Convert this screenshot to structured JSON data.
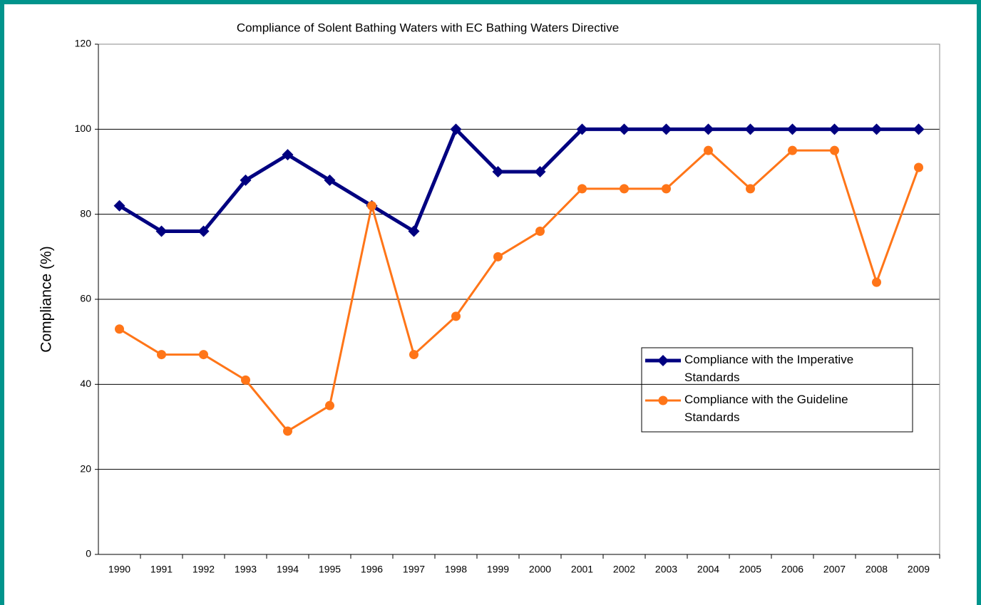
{
  "chart_data": {
    "type": "line",
    "title": "Compliance of Solent Bathing Waters with EC Bathing Waters Directive",
    "y_label": "Compliance (%)",
    "categories": [
      "1990",
      "1991",
      "1992",
      "1993",
      "1994",
      "1995",
      "1996",
      "1997",
      "1998",
      "1999",
      "2000",
      "2001",
      "2002",
      "2003",
      "2004",
      "2005",
      "2006",
      "2007",
      "2008",
      "2009"
    ],
    "series": [
      {
        "name": "Compliance with the Imperative Standards",
        "color": "#000080",
        "marker": "diamond",
        "width": 5,
        "values": [
          82,
          76,
          76,
          88,
          94,
          88,
          82,
          76,
          100,
          90,
          90,
          100,
          100,
          100,
          100,
          100,
          100,
          100,
          100,
          100
        ]
      },
      {
        "name": "Compliance with the Guideline Standards",
        "color": "#ff7518",
        "marker": "circle",
        "width": 3,
        "values": [
          53,
          47,
          47,
          41,
          29,
          35,
          82,
          47,
          56,
          70,
          76,
          86,
          86,
          86,
          95,
          86,
          95,
          95,
          64,
          91
        ]
      }
    ],
    "ylim": [
      0,
      120
    ],
    "yticks": [
      0,
      20,
      40,
      60,
      80,
      100,
      120
    ],
    "grid": true
  }
}
